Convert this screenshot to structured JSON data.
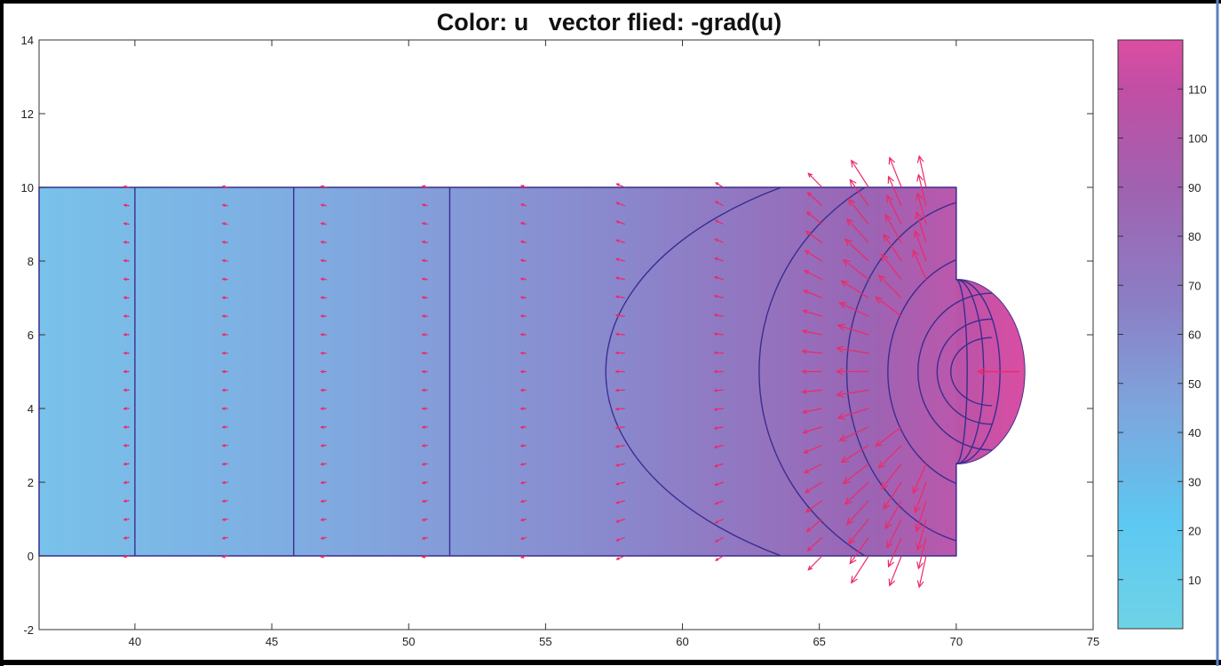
{
  "chart_data": {
    "type": "heatmap",
    "title": "Color: u   vector flied: -grad(u)",
    "xlabel": "",
    "ylabel": "",
    "xlim": [
      36.5,
      75
    ],
    "ylim": [
      -2,
      14
    ],
    "x_ticks": [
      40,
      45,
      50,
      55,
      60,
      65,
      70,
      75
    ],
    "y_ticks": [
      -2,
      0,
      2,
      4,
      6,
      8,
      10,
      12,
      14
    ],
    "grid": false,
    "domain": {
      "rectangle": {
        "x": [
          36.5,
          70
        ],
        "y": [
          0,
          10
        ]
      },
      "half_ellipse": {
        "center": [
          70,
          5
        ],
        "semi_x": 2.5,
        "semi_y": 2.5
      }
    },
    "contours_x_at_center": [
      40,
      45.8,
      51.5,
      57.2,
      62.8,
      66,
      67.5,
      68.6,
      69.3,
      69.8,
      70.4,
      71,
      71.6
    ],
    "vector_field": "-grad(u)",
    "colorbar": {
      "min": 0,
      "max": 120,
      "ticks": [
        10,
        20,
        30,
        40,
        50,
        60,
        70,
        80,
        90,
        100,
        110
      ],
      "colors": [
        "#6fd3e6",
        "#5dc8f2",
        "#7ea4dc",
        "#8b7fc6",
        "#a062b0",
        "#c24ea4",
        "#dc4ea2"
      ]
    }
  }
}
